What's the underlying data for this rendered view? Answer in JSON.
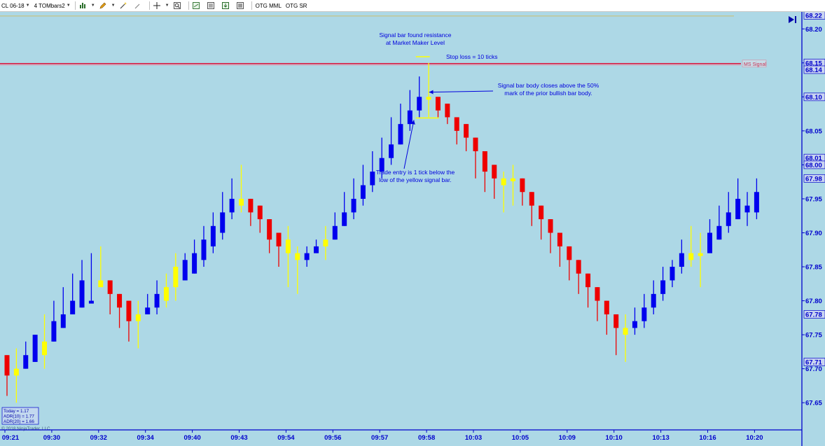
{
  "toolbar": {
    "instrument": "CL 06-18",
    "bar_type": "4 TOMbars2",
    "indicator_1": "OTG MML",
    "indicator_2": "OTG SR",
    "icons": [
      "bar-chart-icon",
      "pencil-icon",
      "wand-icon",
      "crosshair-icon",
      "zoom-icon",
      "strategy-icon",
      "properties-icon",
      "export-icon",
      "dataseries-icon"
    ]
  },
  "colors": {
    "background": "#add8e6",
    "up": "#0000ee",
    "down": "#ee0000",
    "signal": "#ffff00",
    "axis": "#0000cc",
    "mm_line": "#dc143c",
    "top_line": "#cdbe6e"
  },
  "chart_data": {
    "type": "candlestick",
    "ylim": [
      67.61,
      68.225
    ],
    "yticks": [
      67.65,
      67.7,
      67.75,
      67.8,
      67.85,
      67.9,
      67.95,
      68.0,
      68.05,
      68.1,
      68.15,
      68.2
    ],
    "price_markers": [
      68.22,
      68.15,
      68.14,
      68.1,
      68.01,
      68.0,
      67.98,
      67.78,
      67.71
    ],
    "xticks": [
      {
        "label": "09:21",
        "index": 0
      },
      {
        "label": "09:30",
        "index": 5
      },
      {
        "label": "09:32",
        "index": 10
      },
      {
        "label": "09:34",
        "index": 15
      },
      {
        "label": "09:40",
        "index": 20
      },
      {
        "label": "09:43",
        "index": 25
      },
      {
        "label": "09:54",
        "index": 30
      },
      {
        "label": "09:56",
        "index": 35
      },
      {
        "label": "09:57",
        "index": 40
      },
      {
        "label": "09:58",
        "index": 45
      },
      {
        "label": "10:03",
        "index": 50
      },
      {
        "label": "10:05",
        "index": 55
      },
      {
        "label": "10:09",
        "index": 60
      },
      {
        "label": "10:10",
        "index": 65
      },
      {
        "label": "10:13",
        "index": 70
      },
      {
        "label": "10:16",
        "index": 75
      },
      {
        "label": "10:20",
        "index": 80
      }
    ],
    "bars": [
      {
        "o": 67.72,
        "h": 67.72,
        "l": 67.66,
        "c": 67.69,
        "t": "d"
      },
      {
        "o": 67.69,
        "h": 67.73,
        "l": 67.65,
        "c": 67.7,
        "t": "s"
      },
      {
        "o": 67.7,
        "h": 67.74,
        "l": 67.7,
        "c": 67.72,
        "t": "u"
      },
      {
        "o": 67.71,
        "h": 67.75,
        "l": 67.71,
        "c": 67.75,
        "t": "u"
      },
      {
        "o": 67.74,
        "h": 67.78,
        "l": 67.7,
        "c": 67.72,
        "t": "s"
      },
      {
        "o": 67.74,
        "h": 67.8,
        "l": 67.74,
        "c": 67.77,
        "t": "u"
      },
      {
        "o": 67.76,
        "h": 67.82,
        "l": 67.76,
        "c": 67.78,
        "t": "u"
      },
      {
        "o": 67.78,
        "h": 67.84,
        "l": 67.78,
        "c": 67.8,
        "t": "u"
      },
      {
        "o": 67.79,
        "h": 67.86,
        "l": 67.79,
        "c": 67.83,
        "t": "u"
      },
      {
        "o": 67.8,
        "h": 67.87,
        "l": 67.8,
        "c": 67.8,
        "t": "u"
      },
      {
        "o": 67.82,
        "h": 67.88,
        "l": 67.82,
        "c": 67.83,
        "t": "s"
      },
      {
        "o": 67.83,
        "h": 67.83,
        "l": 67.78,
        "c": 67.81,
        "t": "d"
      },
      {
        "o": 67.81,
        "h": 67.81,
        "l": 67.76,
        "c": 67.79,
        "t": "d"
      },
      {
        "o": 67.8,
        "h": 67.8,
        "l": 67.74,
        "c": 67.77,
        "t": "d"
      },
      {
        "o": 67.77,
        "h": 67.8,
        "l": 67.73,
        "c": 67.78,
        "t": "s"
      },
      {
        "o": 67.78,
        "h": 67.81,
        "l": 67.78,
        "c": 67.79,
        "t": "u"
      },
      {
        "o": 67.79,
        "h": 67.83,
        "l": 67.78,
        "c": 67.81,
        "t": "u"
      },
      {
        "o": 67.8,
        "h": 67.84,
        "l": 67.79,
        "c": 67.82,
        "t": "s"
      },
      {
        "o": 67.82,
        "h": 67.87,
        "l": 67.8,
        "c": 67.85,
        "t": "s"
      },
      {
        "o": 67.83,
        "h": 67.87,
        "l": 67.83,
        "c": 67.86,
        "t": "u"
      },
      {
        "o": 67.84,
        "h": 67.89,
        "l": 67.84,
        "c": 67.87,
        "t": "u"
      },
      {
        "o": 67.86,
        "h": 67.91,
        "l": 67.85,
        "c": 67.89,
        "t": "u"
      },
      {
        "o": 67.88,
        "h": 67.93,
        "l": 67.87,
        "c": 67.91,
        "t": "u"
      },
      {
        "o": 67.9,
        "h": 67.96,
        "l": 67.89,
        "c": 67.93,
        "t": "u"
      },
      {
        "o": 67.93,
        "h": 67.98,
        "l": 67.92,
        "c": 67.95,
        "t": "u"
      },
      {
        "o": 67.95,
        "h": 68.0,
        "l": 67.93,
        "c": 67.94,
        "t": "s"
      },
      {
        "o": 67.95,
        "h": 67.95,
        "l": 67.91,
        "c": 67.93,
        "t": "d"
      },
      {
        "o": 67.94,
        "h": 67.94,
        "l": 67.9,
        "c": 67.92,
        "t": "d"
      },
      {
        "o": 67.92,
        "h": 67.92,
        "l": 67.87,
        "c": 67.89,
        "t": "d"
      },
      {
        "o": 67.9,
        "h": 67.9,
        "l": 67.85,
        "c": 67.88,
        "t": "d"
      },
      {
        "o": 67.89,
        "h": 67.91,
        "l": 67.82,
        "c": 67.87,
        "t": "s"
      },
      {
        "o": 67.87,
        "h": 67.88,
        "l": 67.81,
        "c": 67.86,
        "t": "s"
      },
      {
        "o": 67.86,
        "h": 67.88,
        "l": 67.85,
        "c": 67.87,
        "t": "u"
      },
      {
        "o": 67.87,
        "h": 67.89,
        "l": 67.87,
        "c": 67.88,
        "t": "u"
      },
      {
        "o": 67.88,
        "h": 67.91,
        "l": 67.86,
        "c": 67.89,
        "t": "s"
      },
      {
        "o": 67.89,
        "h": 67.93,
        "l": 67.89,
        "c": 67.91,
        "t": "u"
      },
      {
        "o": 67.91,
        "h": 67.96,
        "l": 67.91,
        "c": 67.93,
        "t": "u"
      },
      {
        "o": 67.93,
        "h": 67.98,
        "l": 67.92,
        "c": 67.95,
        "t": "u"
      },
      {
        "o": 67.95,
        "h": 68.0,
        "l": 67.94,
        "c": 67.97,
        "t": "u"
      },
      {
        "o": 67.97,
        "h": 68.02,
        "l": 67.96,
        "c": 67.99,
        "t": "u"
      },
      {
        "o": 67.99,
        "h": 68.04,
        "l": 67.98,
        "c": 68.01,
        "t": "u"
      },
      {
        "o": 68.01,
        "h": 68.07,
        "l": 68.0,
        "c": 68.03,
        "t": "u"
      },
      {
        "o": 68.03,
        "h": 68.09,
        "l": 68.03,
        "c": 68.06,
        "t": "u"
      },
      {
        "o": 68.06,
        "h": 68.11,
        "l": 68.05,
        "c": 68.08,
        "t": "u"
      },
      {
        "o": 68.08,
        "h": 68.13,
        "l": 68.07,
        "c": 68.1,
        "t": "u"
      },
      {
        "o": 68.1,
        "h": 68.15,
        "l": 68.07,
        "c": 68.1,
        "t": "s"
      },
      {
        "o": 68.1,
        "h": 68.1,
        "l": 68.07,
        "c": 68.08,
        "t": "d"
      },
      {
        "o": 68.09,
        "h": 68.09,
        "l": 68.06,
        "c": 68.07,
        "t": "d"
      },
      {
        "o": 68.07,
        "h": 68.07,
        "l": 68.03,
        "c": 68.05,
        "t": "d"
      },
      {
        "o": 68.06,
        "h": 68.06,
        "l": 68.02,
        "c": 68.04,
        "t": "d"
      },
      {
        "o": 68.04,
        "h": 68.04,
        "l": 67.98,
        "c": 68.02,
        "t": "d"
      },
      {
        "o": 68.02,
        "h": 68.02,
        "l": 67.96,
        "c": 67.99,
        "t": "d"
      },
      {
        "o": 68.0,
        "h": 68.0,
        "l": 67.95,
        "c": 67.98,
        "t": "d"
      },
      {
        "o": 67.98,
        "h": 67.99,
        "l": 67.93,
        "c": 67.97,
        "t": "s"
      },
      {
        "o": 67.98,
        "h": 68.0,
        "l": 67.94,
        "c": 67.98,
        "t": "s"
      },
      {
        "o": 67.98,
        "h": 67.98,
        "l": 67.94,
        "c": 67.96,
        "t": "d"
      },
      {
        "o": 67.96,
        "h": 67.96,
        "l": 67.91,
        "c": 67.94,
        "t": "d"
      },
      {
        "o": 67.94,
        "h": 67.94,
        "l": 67.89,
        "c": 67.92,
        "t": "d"
      },
      {
        "o": 67.92,
        "h": 67.92,
        "l": 67.87,
        "c": 67.9,
        "t": "d"
      },
      {
        "o": 67.9,
        "h": 67.9,
        "l": 67.85,
        "c": 67.88,
        "t": "d"
      },
      {
        "o": 67.88,
        "h": 67.88,
        "l": 67.83,
        "c": 67.86,
        "t": "d"
      },
      {
        "o": 67.86,
        "h": 67.86,
        "l": 67.81,
        "c": 67.84,
        "t": "d"
      },
      {
        "o": 67.84,
        "h": 67.84,
        "l": 67.79,
        "c": 67.82,
        "t": "d"
      },
      {
        "o": 67.82,
        "h": 67.82,
        "l": 67.77,
        "c": 67.8,
        "t": "d"
      },
      {
        "o": 67.8,
        "h": 67.8,
        "l": 67.75,
        "c": 67.78,
        "t": "d"
      },
      {
        "o": 67.78,
        "h": 67.78,
        "l": 67.72,
        "c": 67.76,
        "t": "d"
      },
      {
        "o": 67.76,
        "h": 67.78,
        "l": 67.71,
        "c": 67.75,
        "t": "s"
      },
      {
        "o": 67.76,
        "h": 67.79,
        "l": 67.75,
        "c": 67.77,
        "t": "u"
      },
      {
        "o": 67.77,
        "h": 67.81,
        "l": 67.76,
        "c": 67.79,
        "t": "u"
      },
      {
        "o": 67.79,
        "h": 67.83,
        "l": 67.78,
        "c": 67.81,
        "t": "u"
      },
      {
        "o": 67.81,
        "h": 67.85,
        "l": 67.8,
        "c": 67.83,
        "t": "u"
      },
      {
        "o": 67.83,
        "h": 67.86,
        "l": 67.82,
        "c": 67.85,
        "t": "u"
      },
      {
        "o": 67.85,
        "h": 67.89,
        "l": 67.84,
        "c": 67.87,
        "t": "u"
      },
      {
        "o": 67.86,
        "h": 67.91,
        "l": 67.85,
        "c": 67.87,
        "t": "s"
      },
      {
        "o": 67.87,
        "h": 67.9,
        "l": 67.82,
        "c": 67.87,
        "t": "s"
      },
      {
        "o": 67.87,
        "h": 67.92,
        "l": 67.87,
        "c": 67.9,
        "t": "u"
      },
      {
        "o": 67.89,
        "h": 67.94,
        "l": 67.89,
        "c": 67.91,
        "t": "u"
      },
      {
        "o": 67.91,
        "h": 67.96,
        "l": 67.9,
        "c": 67.93,
        "t": "u"
      },
      {
        "o": 67.92,
        "h": 67.98,
        "l": 67.92,
        "c": 67.95,
        "t": "u"
      },
      {
        "o": 67.94,
        "h": 67.96,
        "l": 67.91,
        "c": 67.93,
        "t": "u"
      },
      {
        "o": 67.93,
        "h": 67.98,
        "l": 67.92,
        "c": 67.96,
        "t": "u"
      }
    ],
    "mm_line": {
      "price": 68.15,
      "label": "MS Signal"
    },
    "top_line": {
      "price": 68.22
    },
    "annotations": {
      "signal_resistance": [
        "Signal bar found resistance",
        "at Market Maker Level"
      ],
      "stop_loss": "Stop loss = 10 ticks",
      "signal_body": [
        "Signal bar body closes above the 50%",
        "mark of the prior bullish bar body."
      ],
      "trade_entry": [
        "Trade entry is 1 tick below the",
        "low of the yellow signal bar."
      ]
    },
    "stats": {
      "today": "Today = 1.17",
      "adr10": "ADR(10) = 1.77",
      "adr20": "ADR(20) = 1.66"
    },
    "copyright": "© 2018 NinjaTrader, LLC"
  }
}
